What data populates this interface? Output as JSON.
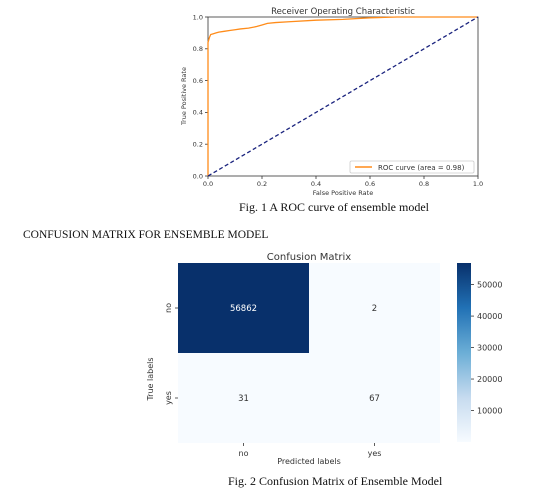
{
  "figure1": {
    "caption": "Fig. 1  A ROC curve of ensemble model"
  },
  "section_heading": "CONFUSION MATRIX FOR ENSEMBLE MODEL",
  "figure2": {
    "caption": "Fig. 2  Confusion Matrix of Ensemble Model"
  },
  "chart_data": [
    {
      "type": "line",
      "title": "Receiver Operating Characteristic",
      "xlabel": "False Positive Rate",
      "ylabel": "True Positive Rate",
      "xlim": [
        0.0,
        1.0
      ],
      "ylim": [
        0.0,
        1.0
      ],
      "x_ticks": [
        "0.0",
        "0.2",
        "0.4",
        "0.6",
        "0.8",
        "1.0"
      ],
      "y_ticks": [
        "0.0",
        "0.2",
        "0.4",
        "0.6",
        "0.8",
        "1.0"
      ],
      "legend": {
        "placement": "lower-right",
        "entries": [
          "ROC curve (area = 0.98)"
        ]
      },
      "grid": false,
      "series": [
        {
          "name": "ROC curve (area = 0.98)",
          "color": "#ff8c1a",
          "style": "solid",
          "x": [
            0.0,
            0.0,
            0.005,
            0.01,
            0.02,
            0.03,
            0.04,
            0.06,
            0.08,
            0.1,
            0.12,
            0.15,
            0.18,
            0.2,
            0.22,
            0.25,
            0.3,
            0.4,
            0.5,
            0.6,
            0.7,
            0.8,
            1.0
          ],
          "y": [
            0.0,
            0.84,
            0.87,
            0.89,
            0.895,
            0.9,
            0.905,
            0.91,
            0.915,
            0.92,
            0.925,
            0.93,
            0.94,
            0.95,
            0.96,
            0.965,
            0.97,
            0.98,
            0.985,
            0.995,
            1.0,
            1.0,
            1.0
          ]
        },
        {
          "name": "",
          "color": "#1a237e",
          "style": "dashed",
          "x": [
            0.0,
            1.0
          ],
          "y": [
            0.0,
            1.0
          ]
        }
      ]
    },
    {
      "type": "heatmap",
      "title": "Confusion Matrix",
      "xlabel": "Predicted labels",
      "ylabel": "True labels",
      "x_categories": [
        "no",
        "yes"
      ],
      "y_categories": [
        "no",
        "yes"
      ],
      "values": [
        [
          56862,
          2
        ],
        [
          31,
          67
        ]
      ],
      "colorbar": {
        "min": 0,
        "max": 56862,
        "ticks": [
          "10000",
          "20000",
          "30000",
          "40000",
          "50000"
        ],
        "tick_values": [
          10000,
          20000,
          30000,
          40000,
          50000
        ]
      },
      "colormap": "Blues",
      "colors": {
        "low": "#f7fbff",
        "high": "#08306b"
      }
    }
  ]
}
